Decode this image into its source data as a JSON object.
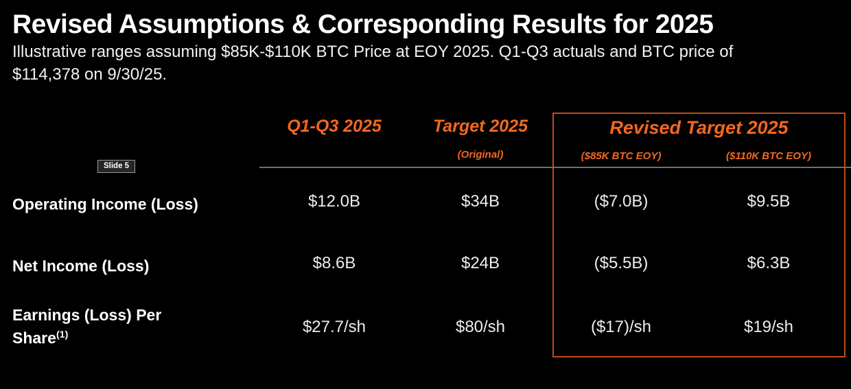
{
  "title": "Revised Assumptions & Corresponding Results for 2025",
  "subtitle_lines": [
    "Illustrative ranges assuming $85K-$110K BTC Price at EOY 2025. Q1-Q3 actuals and BTC price of",
    "$114,378 on 9/30/25."
  ],
  "slide_badge": "Slide 5",
  "colors": {
    "background": "#000000",
    "accent_orange": "#F4681D",
    "box_border_orange": "#BF4E17",
    "divider_gray": "#6F6F6F",
    "title_white": "#FFFFFF",
    "value_white": "#EDEDED"
  },
  "table": {
    "column_headers": {
      "q1q3": "Q1-Q3 2025",
      "target": "Target 2025",
      "target_sub": "(Original)",
      "revised_group": "Revised Target 2025",
      "revised_sub_low": "($85K BTC EOY)",
      "revised_sub_high": "($110K BTC EOY)"
    },
    "rows": [
      {
        "label": "Operating Income (Loss)",
        "values": [
          "$12.0B",
          "$34B",
          "($7.0B)",
          "$9.5B"
        ]
      },
      {
        "label": "Net Income (Loss)",
        "values": [
          "$8.6B",
          "$24B",
          "($5.5B)",
          "$6.3B"
        ]
      },
      {
        "label": "Earnings (Loss) Per Share",
        "label_superscript": "(1)",
        "values": [
          "$27.7/sh",
          "$80/sh",
          "($17)/sh",
          "$19/sh"
        ]
      }
    ]
  }
}
